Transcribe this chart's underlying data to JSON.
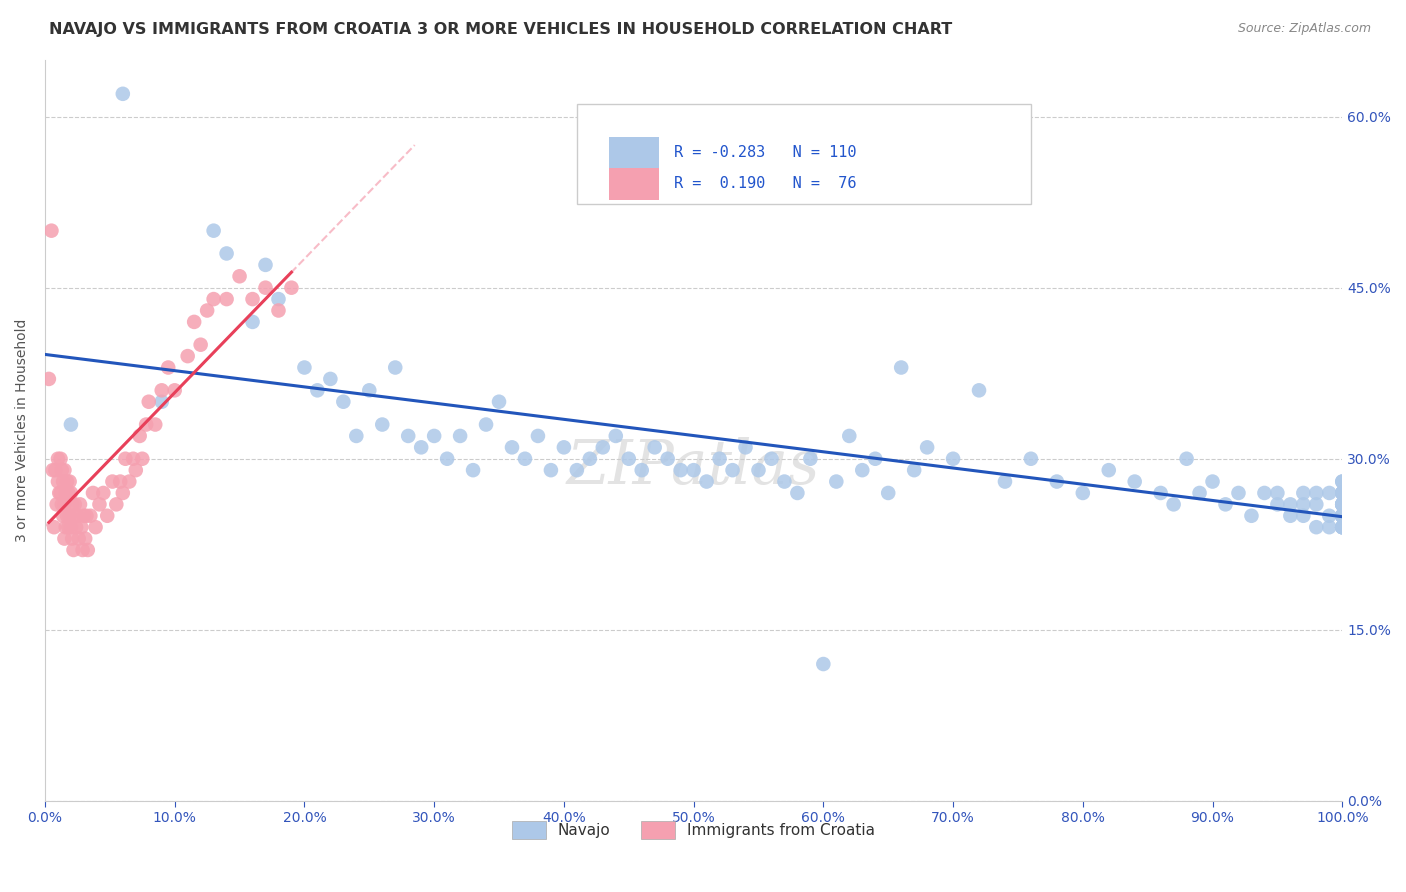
{
  "title": "NAVAJO VS IMMIGRANTS FROM CROATIA 3 OR MORE VEHICLES IN HOUSEHOLD CORRELATION CHART",
  "source": "Source: ZipAtlas.com",
  "ylabel": "3 or more Vehicles in Household",
  "xlim": [
    0.0,
    1.0
  ],
  "ylim": [
    0.0,
    0.65
  ],
  "x_ticks": [
    0.0,
    0.1,
    0.2,
    0.3,
    0.4,
    0.5,
    0.6,
    0.7,
    0.8,
    0.9,
    1.0
  ],
  "x_tick_labels": [
    "0.0%",
    "10.0%",
    "20.0%",
    "30.0%",
    "40.0%",
    "50.0%",
    "60.0%",
    "70.0%",
    "80.0%",
    "90.0%",
    "100.0%"
  ],
  "y_ticks": [
    0.0,
    0.15,
    0.3,
    0.45,
    0.6
  ],
  "y_tick_labels_left": [
    "",
    "",
    "",
    "",
    ""
  ],
  "y_tick_labels_right": [
    "0.0%",
    "15.0%",
    "30.0%",
    "45.0%",
    "60.0%"
  ],
  "navajo_R": "-0.283",
  "navajo_N": "110",
  "croatia_R": "0.190",
  "croatia_N": "76",
  "navajo_color": "#adc8e8",
  "navajo_line_color": "#2255bb",
  "croatia_color": "#f5a0b0",
  "croatia_line_color": "#e8405a",
  "watermark": "ZIPatlas",
  "grid_color": "#cccccc",
  "navajo_x": [
    0.02,
    0.06,
    0.09,
    0.13,
    0.14,
    0.16,
    0.17,
    0.18,
    0.2,
    0.21,
    0.22,
    0.23,
    0.24,
    0.25,
    0.26,
    0.27,
    0.28,
    0.29,
    0.3,
    0.31,
    0.32,
    0.33,
    0.34,
    0.35,
    0.36,
    0.37,
    0.38,
    0.39,
    0.4,
    0.41,
    0.42,
    0.43,
    0.44,
    0.45,
    0.46,
    0.47,
    0.48,
    0.49,
    0.5,
    0.51,
    0.52,
    0.53,
    0.54,
    0.55,
    0.56,
    0.57,
    0.58,
    0.59,
    0.6,
    0.61,
    0.62,
    0.63,
    0.64,
    0.65,
    0.66,
    0.67,
    0.68,
    0.7,
    0.72,
    0.74,
    0.76,
    0.78,
    0.8,
    0.82,
    0.84,
    0.86,
    0.87,
    0.88,
    0.89,
    0.9,
    0.91,
    0.92,
    0.93,
    0.94,
    0.95,
    0.95,
    0.96,
    0.96,
    0.97,
    0.97,
    0.97,
    0.98,
    0.98,
    0.98,
    0.99,
    0.99,
    0.99,
    1.0,
    1.0,
    1.0,
    1.0,
    1.0,
    1.0,
    1.0,
    1.0,
    1.0,
    1.0,
    1.0,
    1.0,
    1.0,
    1.0,
    1.0,
    1.0,
    1.0,
    1.0,
    1.0,
    1.0,
    1.0,
    1.0,
    1.0
  ],
  "navajo_y": [
    0.33,
    0.62,
    0.35,
    0.5,
    0.48,
    0.42,
    0.47,
    0.44,
    0.38,
    0.36,
    0.37,
    0.35,
    0.32,
    0.36,
    0.33,
    0.38,
    0.32,
    0.31,
    0.32,
    0.3,
    0.32,
    0.29,
    0.33,
    0.35,
    0.31,
    0.3,
    0.32,
    0.29,
    0.31,
    0.29,
    0.3,
    0.31,
    0.32,
    0.3,
    0.29,
    0.31,
    0.3,
    0.29,
    0.29,
    0.28,
    0.3,
    0.29,
    0.31,
    0.29,
    0.3,
    0.28,
    0.27,
    0.3,
    0.12,
    0.28,
    0.32,
    0.29,
    0.3,
    0.27,
    0.38,
    0.29,
    0.31,
    0.3,
    0.36,
    0.28,
    0.3,
    0.28,
    0.27,
    0.29,
    0.28,
    0.27,
    0.26,
    0.3,
    0.27,
    0.28,
    0.26,
    0.27,
    0.25,
    0.27,
    0.26,
    0.27,
    0.25,
    0.26,
    0.26,
    0.27,
    0.25,
    0.24,
    0.27,
    0.26,
    0.25,
    0.24,
    0.27,
    0.26,
    0.25,
    0.24,
    0.26,
    0.25,
    0.27,
    0.26,
    0.25,
    0.24,
    0.26,
    0.25,
    0.28,
    0.27,
    0.25,
    0.26,
    0.24,
    0.27,
    0.25,
    0.28,
    0.26,
    0.25,
    0.27,
    0.24
  ],
  "croatia_x": [
    0.003,
    0.005,
    0.006,
    0.007,
    0.008,
    0.009,
    0.01,
    0.01,
    0.011,
    0.012,
    0.012,
    0.013,
    0.013,
    0.014,
    0.014,
    0.015,
    0.015,
    0.015,
    0.016,
    0.016,
    0.017,
    0.017,
    0.018,
    0.018,
    0.019,
    0.019,
    0.02,
    0.02,
    0.021,
    0.021,
    0.022,
    0.022,
    0.023,
    0.024,
    0.025,
    0.026,
    0.027,
    0.028,
    0.029,
    0.03,
    0.031,
    0.032,
    0.033,
    0.035,
    0.037,
    0.039,
    0.042,
    0.045,
    0.048,
    0.052,
    0.055,
    0.058,
    0.06,
    0.062,
    0.065,
    0.068,
    0.07,
    0.073,
    0.075,
    0.078,
    0.08,
    0.085,
    0.09,
    0.095,
    0.1,
    0.11,
    0.115,
    0.12,
    0.125,
    0.13,
    0.14,
    0.15,
    0.16,
    0.17,
    0.18,
    0.19
  ],
  "croatia_y": [
    0.37,
    0.5,
    0.29,
    0.24,
    0.29,
    0.26,
    0.3,
    0.28,
    0.27,
    0.3,
    0.27,
    0.29,
    0.26,
    0.28,
    0.25,
    0.29,
    0.26,
    0.23,
    0.27,
    0.24,
    0.28,
    0.25,
    0.27,
    0.24,
    0.28,
    0.25,
    0.27,
    0.24,
    0.26,
    0.23,
    0.25,
    0.22,
    0.26,
    0.24,
    0.25,
    0.23,
    0.26,
    0.24,
    0.22,
    0.25,
    0.23,
    0.25,
    0.22,
    0.25,
    0.27,
    0.24,
    0.26,
    0.27,
    0.25,
    0.28,
    0.26,
    0.28,
    0.27,
    0.3,
    0.28,
    0.3,
    0.29,
    0.32,
    0.3,
    0.33,
    0.35,
    0.33,
    0.36,
    0.38,
    0.36,
    0.39,
    0.42,
    0.4,
    0.43,
    0.44,
    0.44,
    0.46,
    0.44,
    0.45,
    0.43,
    0.45
  ]
}
